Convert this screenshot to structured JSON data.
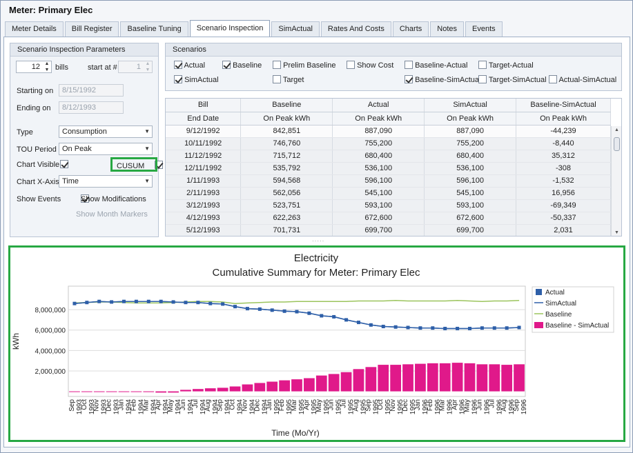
{
  "window": {
    "title": "Meter:  Primary Elec"
  },
  "tabs": [
    {
      "label": "Meter Details"
    },
    {
      "label": "Bill Register"
    },
    {
      "label": "Baseline Tuning"
    },
    {
      "label": "Scenario Inspection"
    },
    {
      "label": "SimActual"
    },
    {
      "label": "Rates And Costs"
    },
    {
      "label": "Charts"
    },
    {
      "label": "Notes"
    },
    {
      "label": "Events"
    }
  ],
  "params": {
    "title": "Scenario Inspection Parameters",
    "bills_value": "12",
    "bills_label": "bills",
    "start_at_label": "start at #",
    "start_at_value": "1",
    "starting_on_label": "Starting on",
    "starting_on_value": "8/15/1992",
    "ending_on_label": "Ending on",
    "ending_on_value": "8/12/1993",
    "type_label": "Type",
    "type_value": "Consumption",
    "tou_label": "TOU Period",
    "tou_value": "On Peak",
    "chart_visible_label": "Chart Visible",
    "chart_visible_checked": true,
    "cusum_label": "CUSUM",
    "cusum_checked": true,
    "xaxis_label": "Chart X-Axis",
    "xaxis_value": "Time",
    "show_events_label": "Show Events",
    "show_events_checked": true,
    "show_mods_label": "Show Modifications",
    "show_mods_checked": true,
    "show_month_label": "Show Month Markers",
    "show_month_checked": false
  },
  "scenarios": {
    "title": "Scenarios",
    "items": [
      {
        "label": "Actual",
        "checked": true
      },
      {
        "label": "Baseline",
        "checked": true
      },
      {
        "label": "Prelim Baseline",
        "checked": false
      },
      {
        "label": "Show Cost",
        "checked": false
      },
      {
        "label": "Baseline-Actual",
        "checked": false
      },
      {
        "label": "Target-Actual",
        "checked": false
      },
      {
        "label": "SimActual",
        "checked": true
      },
      {
        "label": "Target",
        "checked": false
      },
      {
        "label": "Baseline-SimActual",
        "checked": true
      },
      {
        "label": "Target-SimActual",
        "checked": false
      },
      {
        "label": "Actual-SimActual",
        "checked": false
      }
    ]
  },
  "grid": {
    "header1": [
      "Bill",
      "Baseline",
      "Actual",
      "SimActual",
      "Baseline-SimActual"
    ],
    "header2": [
      "End Date",
      "On Peak kWh",
      "On Peak kWh",
      "On Peak kWh",
      "On Peak kWh"
    ],
    "rows": [
      [
        "9/12/1992",
        "842,851",
        "887,090",
        "887,090",
        "-44,239"
      ],
      [
        "10/11/1992",
        "746,760",
        "755,200",
        "755,200",
        "-8,440"
      ],
      [
        "11/12/1992",
        "715,712",
        "680,400",
        "680,400",
        "35,312"
      ],
      [
        "12/11/1992",
        "535,792",
        "536,100",
        "536,100",
        "-308"
      ],
      [
        "1/11/1993",
        "594,568",
        "596,100",
        "596,100",
        "-1,532"
      ],
      [
        "2/11/1993",
        "562,056",
        "545,100",
        "545,100",
        "16,956"
      ],
      [
        "3/12/1993",
        "523,751",
        "593,100",
        "593,100",
        "-69,349"
      ],
      [
        "4/12/1993",
        "622,263",
        "672,600",
        "672,600",
        "-50,337"
      ],
      [
        "5/12/1993",
        "701,731",
        "699,700",
        "699,700",
        "2,031"
      ]
    ]
  },
  "chart_data": {
    "type": "line",
    "title": "Electricity",
    "subtitle": "Cumulative Summary for Meter: Primary Elec",
    "xlabel": "Time (Mo/Yr)",
    "ylabel": "kWh",
    "ylim": [
      -500000,
      10300000
    ],
    "yticks": [
      2000000,
      4000000,
      6000000,
      8000000
    ],
    "ytick_labels": [
      "2,000,000",
      "4,000,000",
      "6,000,000",
      "8,000,000"
    ],
    "grid": true,
    "legend_position": "right",
    "categories": [
      "Sep 1993",
      "Oct 1993",
      "Nov 1993",
      "Dec 1993",
      "Jan 1994",
      "Feb 1994",
      "Mar 1994",
      "Apr 1994",
      "May 1994",
      "Jun 1994",
      "Jul 1994",
      "Aug 1994",
      "Sep 1994",
      "Oct 1994",
      "Nov 1994",
      "Dec 1994",
      "Jan 1995",
      "Feb 1995",
      "Mar 1995",
      "Apr 1995",
      "May 1995",
      "Jun 1995",
      "Jul 1995",
      "Aug 1995",
      "Sep 1995",
      "Oct 1995",
      "Nov 1995",
      "Dec 1995",
      "Jan 1996",
      "Feb 1996",
      "Mar 1996",
      "Apr 1996",
      "May 1996",
      "Jun 1996",
      "Jul 1996",
      "Aug 1996",
      "Sep 1996"
    ],
    "series": [
      {
        "name": "Actual",
        "kind": "line-marker",
        "color": "#2e5fa8",
        "values": [
          8600000,
          8700000,
          8800000,
          8750000,
          8800000,
          8800000,
          8800000,
          8800000,
          8750000,
          8700000,
          8700000,
          8600000,
          8550000,
          8300000,
          8100000,
          8050000,
          7950000,
          7850000,
          7800000,
          7650000,
          7400000,
          7300000,
          7000000,
          6750000,
          6500000,
          6350000,
          6300000,
          6250000,
          6200000,
          6200000,
          6150000,
          6150000,
          6150000,
          6200000,
          6200000,
          6200000,
          6250000
        ]
      },
      {
        "name": "SimActual",
        "kind": "line",
        "color": "#2e5fa8",
        "values": [
          8600000,
          8700000,
          8800000,
          8750000,
          8800000,
          8800000,
          8800000,
          8800000,
          8750000,
          8700000,
          8700000,
          8600000,
          8550000,
          8300000,
          8100000,
          8050000,
          7950000,
          7850000,
          7800000,
          7650000,
          7400000,
          7300000,
          7000000,
          6750000,
          6500000,
          6350000,
          6300000,
          6250000,
          6200000,
          6200000,
          6150000,
          6150000,
          6150000,
          6200000,
          6200000,
          6200000,
          6250000
        ]
      },
      {
        "name": "Baseline",
        "kind": "line",
        "color": "#9bc45c",
        "values": [
          8650000,
          8700000,
          8750000,
          8750000,
          8700000,
          8650000,
          8650000,
          8650000,
          8700000,
          8750000,
          8800000,
          8800000,
          8750000,
          8600000,
          8650000,
          8700000,
          8750000,
          8750000,
          8800000,
          8800000,
          8800000,
          8800000,
          8800000,
          8850000,
          8850000,
          8850000,
          8900000,
          8850000,
          8850000,
          8850000,
          8850000,
          8900000,
          8850000,
          8800000,
          8850000,
          8850000,
          8900000
        ]
      },
      {
        "name": "Baseline - SimActual",
        "kind": "bar",
        "color": "#e0198a",
        "values": [
          -44000,
          -53000,
          -17000,
          -18000,
          -19000,
          -2000,
          -71000,
          -122000,
          -120000,
          150000,
          230000,
          300000,
          350000,
          480000,
          680000,
          820000,
          950000,
          1080000,
          1180000,
          1290000,
          1550000,
          1700000,
          1880000,
          2180000,
          2380000,
          2600000,
          2600000,
          2650000,
          2700000,
          2750000,
          2750000,
          2800000,
          2750000,
          2650000,
          2650000,
          2600000,
          2650000
        ]
      }
    ]
  }
}
